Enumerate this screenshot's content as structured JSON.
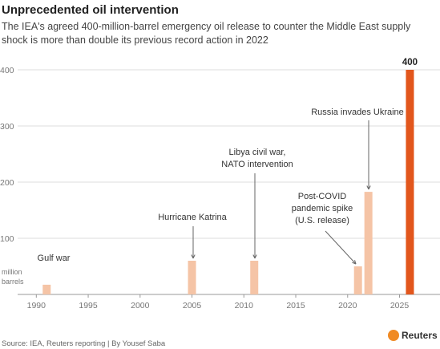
{
  "chart_data": {
    "type": "bar",
    "title": "Unprecedented oil intervention",
    "subtitle": [
      "The IEA's agreed 400-million-barrel emergency oil release to counter the Middle East supply",
      "shock is more than double its previous record action in 2022"
    ],
    "x": [
      1991,
      2005,
      2011,
      2021,
      2022,
      2026
    ],
    "values": [
      17.3,
      60,
      60,
      50,
      182.7,
      400
    ],
    "colors": [
      "#f5c4a6",
      "#f5c4a6",
      "#f5c4a6",
      "#f5c4a6",
      "#f5c4a6",
      "#e2561c"
    ],
    "xlim": [
      1986.5,
      2028.9
    ],
    "xticks": [
      1990,
      1995,
      2000,
      2005,
      2010,
      2015,
      2020,
      2025
    ],
    "ylim": [
      0,
      400
    ],
    "yticks": [
      100,
      200,
      300,
      400
    ],
    "y_label": [
      "million",
      "barrels"
    ],
    "grid": true,
    "annotations": [
      [
        "Gulf war"
      ],
      [
        "Hurricane Katrina"
      ],
      [
        "Libya civil war,",
        "NATO intervention"
      ],
      [
        "Post-COVID",
        "pandemic spike",
        "(U.S. release)"
      ],
      [
        "Russia invades Ukraine"
      ]
    ],
    "source": "Source: IEA, Reuters reporting | By Yousef Saba",
    "logo": "Reuters"
  }
}
